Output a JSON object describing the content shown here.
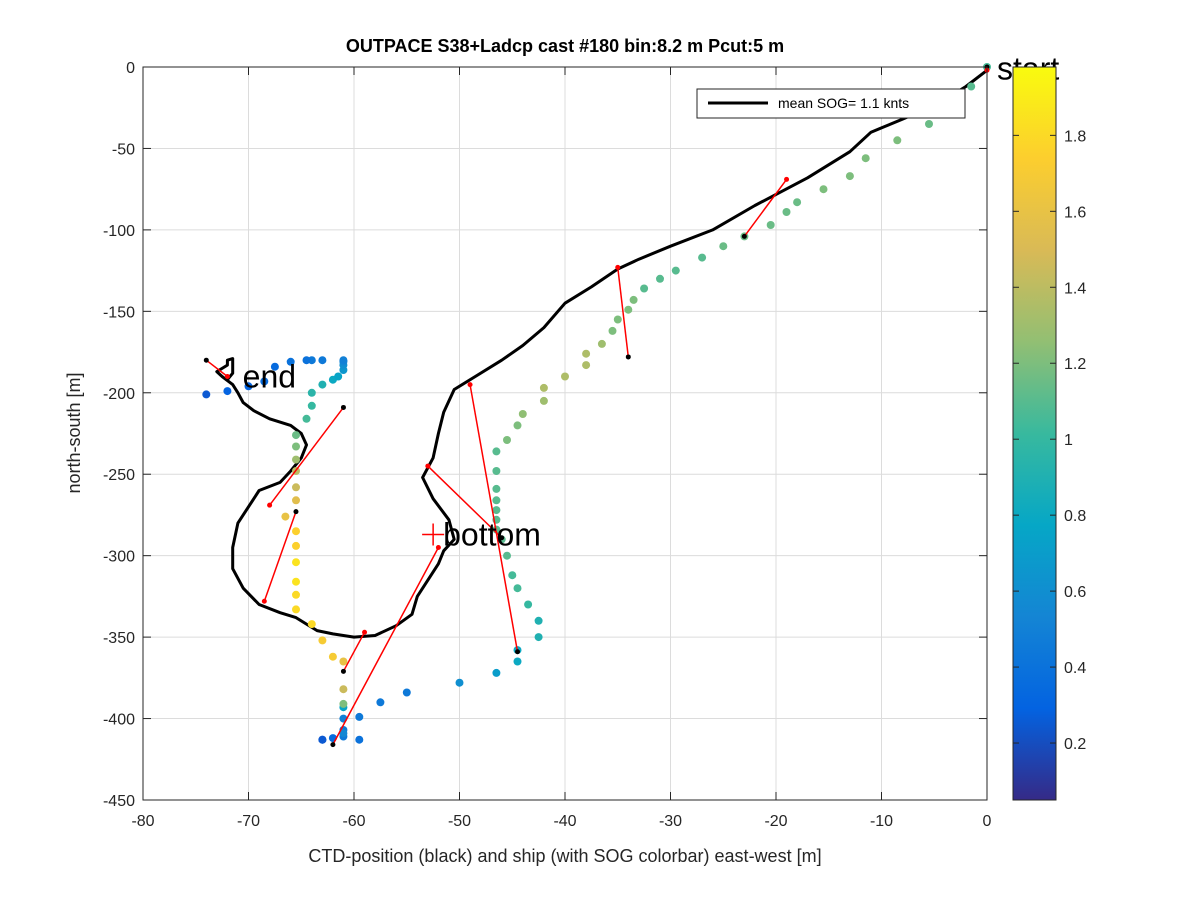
{
  "chart_data": {
    "type": "scatter",
    "title": "OUTPACE S38+Ladcp cast #180 bin:8.2 m  Pcut:5 m",
    "xlabel": "CTD-position (black) and ship (with SOG colorbar) east-west [m]",
    "ylabel": "north-south [m]",
    "xlim": [
      -80,
      0
    ],
    "ylim": [
      -450,
      0
    ],
    "xticks": [
      "-80",
      "-70",
      "-60",
      "-50",
      "-40",
      "-30",
      "-20",
      "-10",
      "0"
    ],
    "yticks": [
      "0",
      "-50",
      "-100",
      "-150",
      "-200",
      "-250",
      "-300",
      "-350",
      "-400",
      "-450"
    ],
    "grid": true,
    "legend": {
      "label": "mean SOG=  1.1 knts",
      "position": "top-right"
    },
    "annotations": [
      {
        "text": "start",
        "x": 0,
        "y": -1
      },
      {
        "text": "end",
        "x": -71.5,
        "y": -190
      },
      {
        "text": "bottom",
        "x": -52.5,
        "y": -287
      }
    ],
    "colorbar": {
      "ticks": [
        "0.2",
        "0.4",
        "0.6",
        "0.8",
        "1",
        "1.2",
        "1.4",
        "1.6",
        "1.8"
      ],
      "range": [
        0.05,
        1.98
      ],
      "colors": [
        "#352a87",
        "#0363e1",
        "#1485d4",
        "#06a7c6",
        "#38b99e",
        "#92bf73",
        "#d9ba56",
        "#fcce2e",
        "#f9fb0e"
      ]
    },
    "ctd_track": {
      "x": [
        0,
        -2,
        -4,
        -5.5,
        -8,
        -11,
        -13,
        -17,
        -22,
        -26,
        -30,
        -33,
        -35,
        -37.5,
        -40,
        -42,
        -44,
        -46,
        -48.5,
        -50.5,
        -51.5,
        -52,
        -52.5,
        -53.5,
        -52.5,
        -51,
        -50.5,
        -51.5,
        -52,
        -53,
        -54,
        -54.5,
        -56,
        -58,
        -60,
        -61,
        -62,
        -63.5,
        -64.5,
        -65.5,
        -67,
        -69,
        -70.5,
        -71.5,
        -71.5,
        -71,
        -70,
        -69.5,
        -69,
        -67,
        -66,
        -65,
        -64.5,
        -65,
        -66,
        -68,
        -69.5,
        -70.5,
        -71,
        -71.5,
        -72.5,
        -73,
        -72,
        -72,
        -71.5,
        -71.5,
        -72
      ],
      "y": [
        -2,
        -12,
        -20,
        -25,
        -32,
        -40,
        -52,
        -68,
        -85,
        -100,
        -110,
        -118,
        -124,
        -135,
        -145,
        -160,
        -171,
        -180,
        -190,
        -198,
        -212,
        -225,
        -240,
        -252,
        -265,
        -278,
        -290,
        -297,
        -305,
        -315,
        -325,
        -336,
        -343,
        -349,
        -350,
        -349,
        -348,
        -346,
        -342,
        -338,
        -335,
        -330,
        -320,
        -308,
        -295,
        -280,
        -270,
        -265,
        -260,
        -255,
        -248,
        -240,
        -232,
        -225,
        -220,
        -216,
        -211,
        -206,
        -200,
        -195,
        -190,
        -187,
        -183,
        -180,
        -179,
        -188,
        -192
      ]
    },
    "ship_points": {
      "x": [
        0,
        -1.5,
        -3,
        -5.5,
        -8.5,
        -11.5,
        -13,
        -15.5,
        -18,
        -19,
        -20.5,
        -23,
        -25,
        -27,
        -29.5,
        -31,
        -32.5,
        -33.5,
        -34,
        -35,
        -35.5,
        -36.5,
        -38,
        -38,
        -40,
        -42,
        -42,
        -44,
        -44.5,
        -45.5,
        -46.5,
        -46.5,
        -46.5,
        -46.5,
        -46.5,
        -46.5,
        -46.5,
        -46,
        -45.5,
        -45,
        -44.5,
        -43.5,
        -42.5,
        -42.5,
        -44.5,
        -44.5,
        -46.5,
        -50,
        -55,
        -57.5,
        -59.5,
        -61,
        -61,
        -62,
        -63,
        -63,
        -61,
        -61,
        -59.5,
        -61,
        -61,
        -61,
        -61,
        -62,
        -63,
        -64,
        -65.5,
        -65.5,
        -65.5,
        -65.5,
        -65.5,
        -65.5,
        -66.5,
        -65.5,
        -65.5,
        -65.5,
        -65.5,
        -65.5,
        -65.5,
        -64.5,
        -64,
        -64,
        -63,
        -62,
        -61.5,
        -61,
        -61,
        -61,
        -61,
        -63,
        -64,
        -64.5,
        -66,
        -67.5,
        -68.5,
        -70,
        -72,
        -74
      ],
      "y": [
        0,
        -12,
        -25,
        -35,
        -45,
        -56,
        -67,
        -75,
        -83,
        -89,
        -97,
        -104,
        -110,
        -117,
        -125,
        -130,
        -136,
        -143,
        -149,
        -155,
        -162,
        -170,
        -176,
        -183,
        -190,
        -197,
        -205,
        -213,
        -220,
        -229,
        -236,
        -248,
        -259,
        -266,
        -272,
        -278,
        -284,
        -290,
        -300,
        -312,
        -320,
        -330,
        -340,
        -350,
        -358,
        -365,
        -372,
        -378,
        -384,
        -390,
        -399,
        -407,
        -411,
        -412,
        -413,
        -413,
        -393,
        -409,
        -413,
        -400,
        -391,
        -382,
        -365,
        -362,
        -352,
        -342,
        -333,
        -324,
        -316,
        -304,
        -294,
        -285,
        -276,
        -266,
        -258,
        -248,
        -241,
        -233,
        -226,
        -216,
        -208,
        -200,
        -195,
        -192,
        -190,
        -186,
        -183,
        -181,
        -180,
        -180,
        -180,
        -180,
        -181,
        -184,
        -193,
        -196,
        -199,
        -201
      ],
      "sog": [
        1.05,
        1.1,
        1.15,
        1.15,
        1.2,
        1.2,
        1.2,
        1.2,
        1.15,
        1.15,
        1.15,
        1.15,
        1.15,
        1.1,
        1.1,
        1.1,
        1.1,
        1.2,
        1.2,
        1.2,
        1.2,
        1.3,
        1.35,
        1.35,
        1.35,
        1.35,
        1.3,
        1.25,
        1.2,
        1.2,
        1.1,
        1.1,
        1.1,
        1.1,
        1.1,
        1.1,
        1.1,
        1.1,
        1.1,
        1.05,
        1.05,
        1.0,
        0.9,
        0.9,
        0.8,
        0.8,
        0.7,
        0.6,
        0.45,
        0.45,
        0.45,
        0.45,
        0.45,
        0.35,
        0.25,
        0.25,
        0.75,
        0.55,
        0.4,
        0.5,
        1.2,
        1.45,
        1.6,
        1.7,
        1.7,
        1.8,
        1.8,
        1.8,
        1.85,
        1.85,
        1.75,
        1.75,
        1.6,
        1.55,
        1.45,
        1.4,
        1.3,
        1.2,
        1.15,
        1.05,
        1.0,
        0.95,
        0.9,
        0.8,
        0.75,
        0.65,
        0.6,
        0.55,
        0.5,
        0.45,
        0.45,
        0.4,
        0.4,
        0.35,
        0.35,
        0.3,
        0.3,
        0.25
      ]
    },
    "connectors": [
      {
        "ship": [
          0,
          0
        ],
        "ctd": [
          0,
          -2
        ]
      },
      {
        "ship": [
          -23,
          -104
        ],
        "ctd": [
          -19,
          -69
        ]
      },
      {
        "ship": [
          -34,
          -178
        ],
        "ctd": [
          -35,
          -123
        ]
      },
      {
        "ship": [
          -44.5,
          -359
        ],
        "ctd": [
          -49,
          -195
        ]
      },
      {
        "ship": [
          -46,
          -289
        ],
        "ctd": [
          -53,
          -245
        ]
      },
      {
        "ship": [
          -62,
          -416
        ],
        "ctd": [
          -52,
          -295
        ]
      },
      {
        "ship": [
          -61,
          -371
        ],
        "ctd": [
          -59,
          -347
        ]
      },
      {
        "ship": [
          -65.5,
          -273
        ],
        "ctd": [
          -68.5,
          -328
        ]
      },
      {
        "ship": [
          -61,
          -209
        ],
        "ctd": [
          -68,
          -269
        ]
      },
      {
        "ship": [
          -74,
          -180
        ],
        "ctd": [
          -72,
          -190
        ]
      }
    ]
  }
}
